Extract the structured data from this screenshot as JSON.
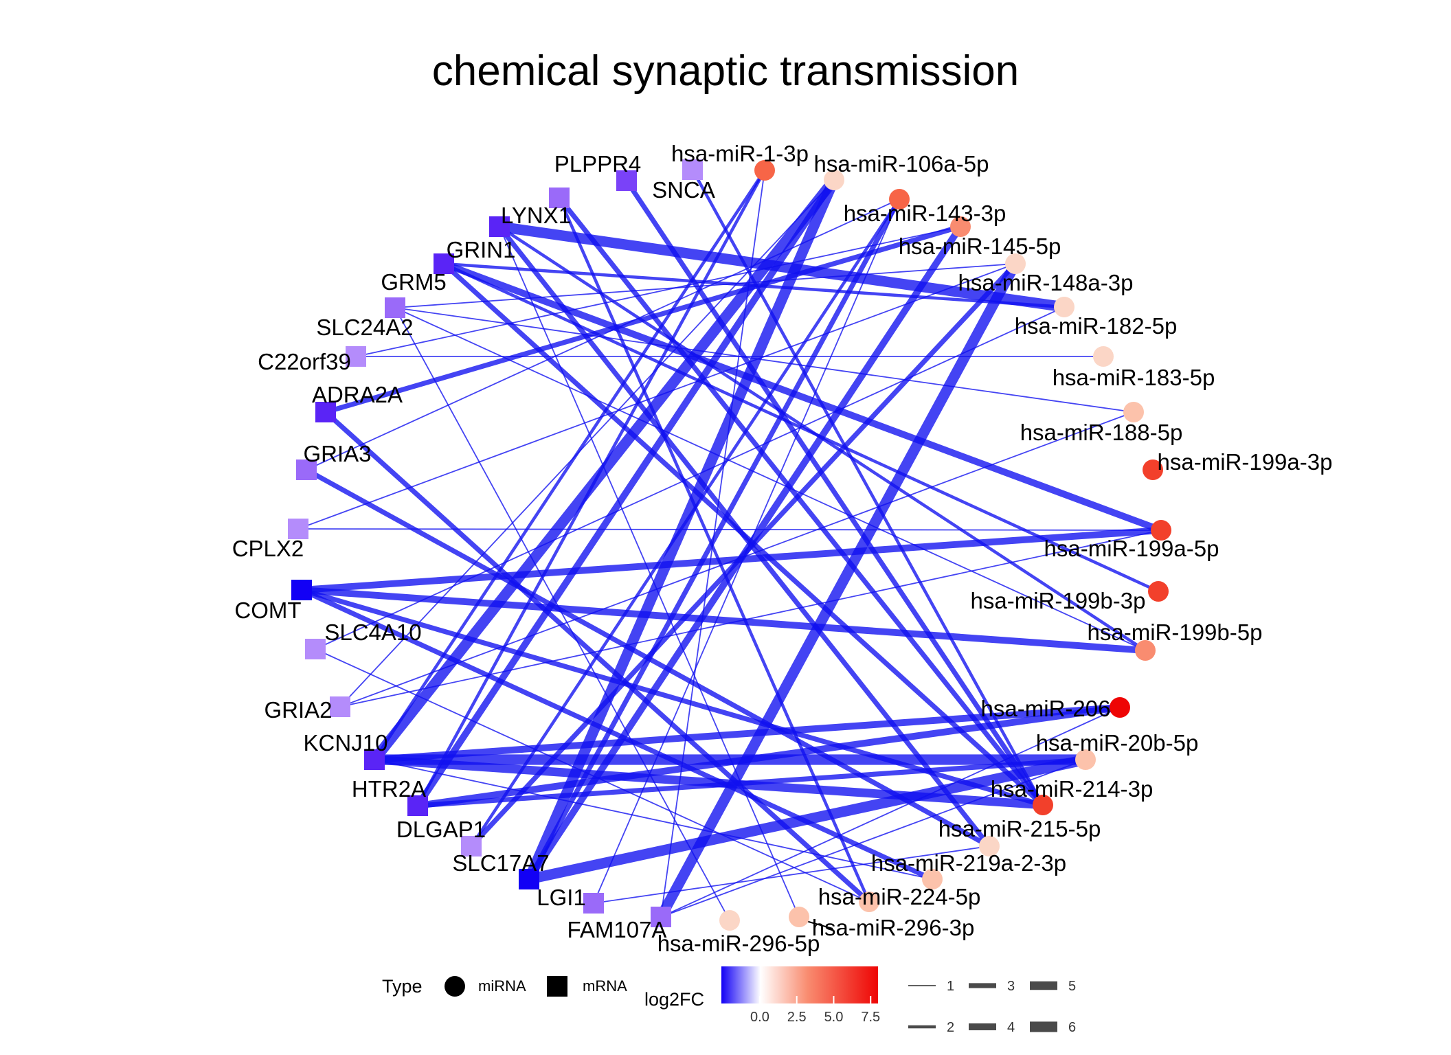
{
  "title": "chemical synaptic transmission",
  "colors": {
    "edge": "#1010f0",
    "mrna_palette": [
      "#1200f5",
      "#5a24f6",
      "#7a42f8",
      "#9a6af9",
      "#b48cfb"
    ],
    "mirna_palette": [
      "#fbd6c6",
      "#fcc2ab",
      "#f98c70",
      "#f76547",
      "#f2402b",
      "#ee0505"
    ]
  },
  "nodes": [
    {
      "id": "PLPPR4",
      "type": "mRNA",
      "log2fc": -2.6
    },
    {
      "id": "SNCA",
      "type": "mRNA",
      "log2fc": -1.6
    },
    {
      "id": "LYNX1",
      "type": "mRNA",
      "log2fc": -1.9
    },
    {
      "id": "GRIN1",
      "type": "mRNA",
      "log2fc": -2.9
    },
    {
      "id": "GRM5",
      "type": "mRNA",
      "log2fc": -3.1
    },
    {
      "id": "SLC24A2",
      "type": "mRNA",
      "log2fc": -2.0
    },
    {
      "id": "C22orf39",
      "type": "mRNA",
      "log2fc": -1.7
    },
    {
      "id": "ADRA2A",
      "type": "mRNA",
      "log2fc": -2.8
    },
    {
      "id": "GRIA3",
      "type": "mRNA",
      "log2fc": -1.9
    },
    {
      "id": "CPLX2",
      "type": "mRNA",
      "log2fc": -1.6
    },
    {
      "id": "COMT",
      "type": "mRNA",
      "log2fc": -4.6
    },
    {
      "id": "SLC4A10",
      "type": "mRNA",
      "log2fc": -1.5
    },
    {
      "id": "GRIA2",
      "type": "mRNA",
      "log2fc": -1.5
    },
    {
      "id": "KCNJ10",
      "type": "mRNA",
      "log2fc": -3.2
    },
    {
      "id": "HTR2A",
      "type": "mRNA",
      "log2fc": -3.4
    },
    {
      "id": "DLGAP1",
      "type": "mRNA",
      "log2fc": -1.7
    },
    {
      "id": "SLC17A7",
      "type": "mRNA",
      "log2fc": -4.2
    },
    {
      "id": "LGI1",
      "type": "mRNA",
      "log2fc": -1.8
    },
    {
      "id": "FAM107A",
      "type": "mRNA",
      "log2fc": -2.1
    },
    {
      "id": "hsa-miR-1-3p",
      "type": "miRNA",
      "log2fc": 5.8
    },
    {
      "id": "hsa-miR-106a-5p",
      "type": "miRNA",
      "log2fc": 1.2
    },
    {
      "id": "hsa-miR-143-3p",
      "type": "miRNA",
      "log2fc": 5.6
    },
    {
      "id": "hsa-miR-145-5p",
      "type": "miRNA",
      "log2fc": 5.2
    },
    {
      "id": "hsa-miR-148a-3p",
      "type": "miRNA",
      "log2fc": 1.0
    },
    {
      "id": "hsa-miR-182-5p",
      "type": "miRNA",
      "log2fc": 1.1
    },
    {
      "id": "hsa-miR-183-5p",
      "type": "miRNA",
      "log2fc": 1.2
    },
    {
      "id": "hsa-miR-188-5p",
      "type": "miRNA",
      "log2fc": 2.2
    },
    {
      "id": "hsa-miR-199a-3p",
      "type": "miRNA",
      "log2fc": 6.2
    },
    {
      "id": "hsa-miR-199a-5p",
      "type": "miRNA",
      "log2fc": 6.3
    },
    {
      "id": "hsa-miR-199b-3p",
      "type": "miRNA",
      "log2fc": 6.0
    },
    {
      "id": "hsa-miR-199b-5p",
      "type": "miRNA",
      "log2fc": 5.0
    },
    {
      "id": "hsa-miR-206",
      "type": "miRNA",
      "log2fc": 7.8
    },
    {
      "id": "hsa-miR-20b-5p",
      "type": "miRNA",
      "log2fc": 2.4
    },
    {
      "id": "hsa-miR-214-3p",
      "type": "miRNA",
      "log2fc": 6.1
    },
    {
      "id": "hsa-miR-215-5p",
      "type": "miRNA",
      "log2fc": 0.9
    },
    {
      "id": "hsa-miR-219a-2-3p",
      "type": "miRNA",
      "log2fc": 1.5
    },
    {
      "id": "hsa-miR-224-5p",
      "type": "miRNA",
      "log2fc": 1.6
    },
    {
      "id": "hsa-miR-296-5p",
      "type": "miRNA",
      "log2fc": 1.0
    },
    {
      "id": "hsa-miR-296-3p",
      "type": "miRNA",
      "log2fc": 1.4
    }
  ],
  "edges": [
    {
      "source": "PLPPR4",
      "target": "hsa-miR-214-3p",
      "weight": 3
    },
    {
      "source": "SNCA",
      "target": "hsa-miR-214-3p",
      "weight": 2
    },
    {
      "source": "LYNX1",
      "target": "hsa-miR-214-3p",
      "weight": 3
    },
    {
      "source": "LYNX1",
      "target": "hsa-miR-224-5p",
      "weight": 2
    },
    {
      "source": "GRIN1",
      "target": "hsa-miR-182-5p",
      "weight": 6
    },
    {
      "source": "GRIN1",
      "target": "hsa-miR-215-5p",
      "weight": 3
    },
    {
      "source": "GRIN1",
      "target": "hsa-miR-199b-5p",
      "weight": 2
    },
    {
      "source": "GRM5",
      "target": "hsa-miR-182-5p",
      "weight": 2
    },
    {
      "source": "GRM5",
      "target": "hsa-miR-199a-5p",
      "weight": 4
    },
    {
      "source": "GRM5",
      "target": "hsa-miR-214-3p",
      "weight": 3
    },
    {
      "source": "GRM5",
      "target": "hsa-miR-199b-3p",
      "weight": 2
    },
    {
      "source": "SLC24A2",
      "target": "hsa-miR-148a-3p",
      "weight": 1
    },
    {
      "source": "SLC24A2",
      "target": "hsa-miR-188-5p",
      "weight": 1
    },
    {
      "source": "SLC24A2",
      "target": "hsa-miR-199b-5p",
      "weight": 1
    },
    {
      "source": "C22orf39",
      "target": "hsa-miR-145-5p",
      "weight": 1
    },
    {
      "source": "C22orf39",
      "target": "hsa-miR-183-5p",
      "weight": 1
    },
    {
      "source": "ADRA2A",
      "target": "hsa-miR-145-5p",
      "weight": 3
    },
    {
      "source": "ADRA2A",
      "target": "hsa-miR-224-5p",
      "weight": 3
    },
    {
      "source": "GRIA3",
      "target": "hsa-miR-143-3p",
      "weight": 1
    },
    {
      "source": "GRIA3",
      "target": "hsa-miR-215-5p",
      "weight": 3
    },
    {
      "source": "CPLX2",
      "target": "hsa-miR-199a-5p",
      "weight": 1
    },
    {
      "source": "CPLX2",
      "target": "hsa-miR-148a-3p",
      "weight": 1
    },
    {
      "source": "COMT",
      "target": "hsa-miR-199a-5p",
      "weight": 4
    },
    {
      "source": "COMT",
      "target": "hsa-miR-199b-5p",
      "weight": 4
    },
    {
      "source": "COMT",
      "target": "hsa-miR-214-3p",
      "weight": 3
    },
    {
      "source": "COMT",
      "target": "hsa-miR-219a-2-3p",
      "weight": 3
    },
    {
      "source": "SLC4A10",
      "target": "hsa-miR-182-5p",
      "weight": 1
    },
    {
      "source": "SLC4A10",
      "target": "hsa-miR-224-5p",
      "weight": 1
    },
    {
      "source": "GRIA2",
      "target": "hsa-miR-106a-5p",
      "weight": 1
    },
    {
      "source": "GRIA2",
      "target": "hsa-miR-188-5p",
      "weight": 1
    },
    {
      "source": "GRIA2",
      "target": "hsa-miR-199a-5p",
      "weight": 1
    },
    {
      "source": "KCNJ10",
      "target": "hsa-miR-106a-5p",
      "weight": 6
    },
    {
      "source": "KCNJ10",
      "target": "hsa-miR-20b-5p",
      "weight": 6
    },
    {
      "source": "KCNJ10",
      "target": "hsa-miR-206",
      "weight": 4
    },
    {
      "source": "KCNJ10",
      "target": "hsa-miR-214-3p",
      "weight": 5
    },
    {
      "source": "KCNJ10",
      "target": "hsa-miR-1-3p",
      "weight": 2
    },
    {
      "source": "HTR2A",
      "target": "hsa-miR-206",
      "weight": 4
    },
    {
      "source": "HTR2A",
      "target": "hsa-miR-20b-5p",
      "weight": 3
    },
    {
      "source": "HTR2A",
      "target": "hsa-miR-106a-5p",
      "weight": 4
    },
    {
      "source": "DLGAP1",
      "target": "hsa-miR-148a-3p",
      "weight": 3
    },
    {
      "source": "DLGAP1",
      "target": "hsa-miR-143-3p",
      "weight": 2
    },
    {
      "source": "SLC17A7",
      "target": "hsa-miR-106a-5p",
      "weight": 6
    },
    {
      "source": "SLC17A7",
      "target": "hsa-miR-20b-5p",
      "weight": 6
    },
    {
      "source": "SLC17A7",
      "target": "hsa-miR-145-5p",
      "weight": 4
    },
    {
      "source": "SLC17A7",
      "target": "hsa-miR-143-3p",
      "weight": 3
    },
    {
      "source": "LGI1",
      "target": "hsa-miR-143-3p",
      "weight": 1
    },
    {
      "source": "LGI1",
      "target": "hsa-miR-215-5p",
      "weight": 1
    },
    {
      "source": "FAM107A",
      "target": "hsa-miR-148a-3p",
      "weight": 6
    },
    {
      "source": "FAM107A",
      "target": "hsa-miR-206",
      "weight": 1
    },
    {
      "source": "FAM107A",
      "target": "hsa-miR-20b-5p",
      "weight": 1
    },
    {
      "source": "hsa-miR-296-5p",
      "target": "SLC24A2",
      "weight": 1
    },
    {
      "source": "hsa-miR-296-3p",
      "target": "GRIN1",
      "weight": 1
    },
    {
      "source": "hsa-miR-219a-2-3p",
      "target": "KCNJ10",
      "weight": 1
    },
    {
      "source": "hsa-miR-1-3p",
      "target": "FAM107A",
      "weight": 1
    },
    {
      "source": "hsa-miR-1-3p",
      "target": "HTR2A",
      "weight": 2
    }
  ],
  "legend": {
    "type_title": "Type",
    "type_items": [
      {
        "label": "miRNA",
        "shape": "circle"
      },
      {
        "label": "mRNA",
        "shape": "square"
      }
    ],
    "color_title": "log2FC",
    "color_ticks": [
      "0.0",
      "2.5",
      "5.0",
      "7.5"
    ],
    "color_range": [
      -2.6,
      8.0
    ],
    "width_items": [
      "1",
      "2",
      "3",
      "4",
      "5",
      "6"
    ]
  }
}
